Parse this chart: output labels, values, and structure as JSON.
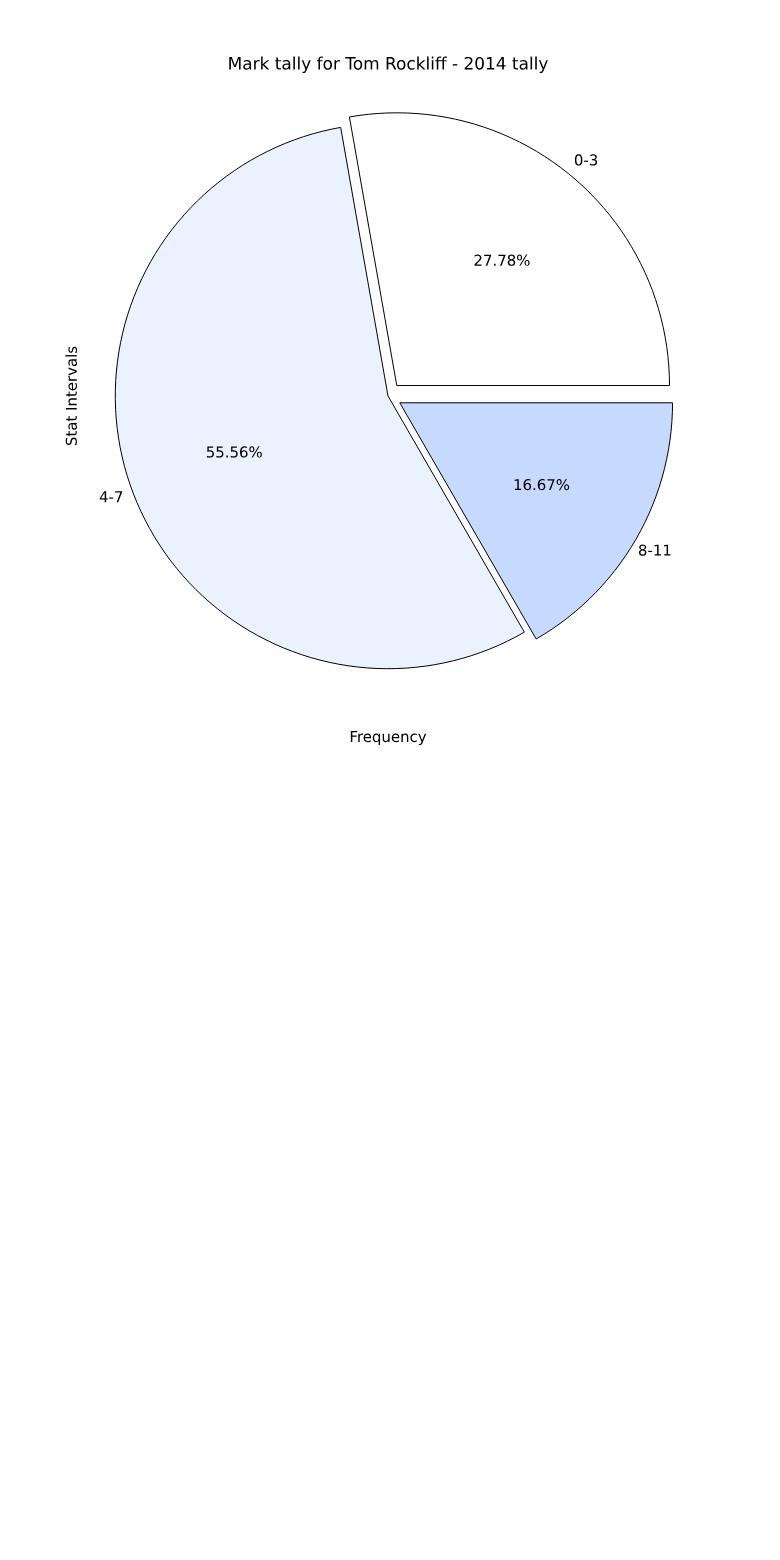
{
  "chart_data": {
    "type": "pie",
    "title": "Mark tally for Tom Rockliff - 2014 tally",
    "xlabel": "Frequency",
    "ylabel": "Stat Intervals",
    "categories": [
      "0-3",
      "4-7",
      "8-11"
    ],
    "values": [
      27.78,
      55.56,
      16.67
    ],
    "value_labels": [
      "27.78%",
      "55.56%",
      "16.67%"
    ],
    "colors": [
      "#ffffff",
      "#eaf1ff",
      "#c6d9ff"
    ]
  }
}
